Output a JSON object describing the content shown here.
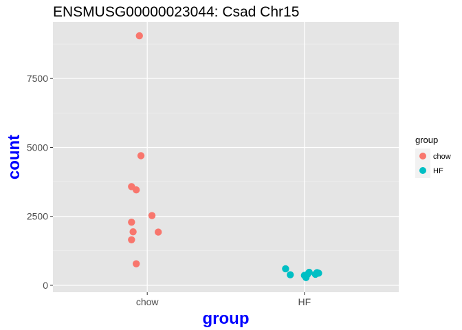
{
  "chart_data": {
    "type": "scatter",
    "title": "ENSMUSG00000023044: Csad Chr15",
    "xlabel": "group",
    "ylabel": "count",
    "categories": [
      "chow",
      "HF"
    ],
    "ylim": [
      -250,
      9550
    ],
    "yticks": [
      0,
      2500,
      5000,
      7500
    ],
    "ytick_labels": [
      "0",
      "2500",
      "5000",
      "7500"
    ],
    "grid": true,
    "legend": {
      "title": "group",
      "position": "right",
      "entries": [
        {
          "label": "chow",
          "color": "#F8766D"
        },
        {
          "label": "HF",
          "color": "#00BFC4"
        }
      ]
    },
    "series": [
      {
        "name": "chow",
        "color": "#F8766D",
        "points": [
          {
            "x": "chow",
            "jitter": -0.05,
            "y": 9050
          },
          {
            "x": "chow",
            "jitter": -0.04,
            "y": 4700
          },
          {
            "x": "chow",
            "jitter": -0.1,
            "y": 3580
          },
          {
            "x": "chow",
            "jitter": -0.07,
            "y": 3460
          },
          {
            "x": "chow",
            "jitter": 0.03,
            "y": 2530
          },
          {
            "x": "chow",
            "jitter": -0.1,
            "y": 2290
          },
          {
            "x": "chow",
            "jitter": 0.07,
            "y": 1930
          },
          {
            "x": "chow",
            "jitter": -0.09,
            "y": 1940
          },
          {
            "x": "chow",
            "jitter": -0.1,
            "y": 1650
          },
          {
            "x": "chow",
            "jitter": -0.07,
            "y": 780
          }
        ]
      },
      {
        "name": "HF",
        "color": "#00BFC4",
        "points": [
          {
            "x": "HF",
            "jitter": -0.12,
            "y": 600
          },
          {
            "x": "HF",
            "jitter": -0.09,
            "y": 380
          },
          {
            "x": "HF",
            "jitter": 0.03,
            "y": 470
          },
          {
            "x": "HF",
            "jitter": 0.02,
            "y": 400
          },
          {
            "x": "HF",
            "jitter": 0.0,
            "y": 360
          },
          {
            "x": "HF",
            "jitter": 0.01,
            "y": 280
          },
          {
            "x": "HF",
            "jitter": 0.08,
            "y": 460
          },
          {
            "x": "HF",
            "jitter": 0.07,
            "y": 400
          },
          {
            "x": "HF",
            "jitter": 0.09,
            "y": 440
          }
        ]
      }
    ]
  },
  "theme": {
    "panel_background": "#E5E5E5",
    "grid_color": "#FFFFFF",
    "axis_title_color": "#0000FF"
  }
}
